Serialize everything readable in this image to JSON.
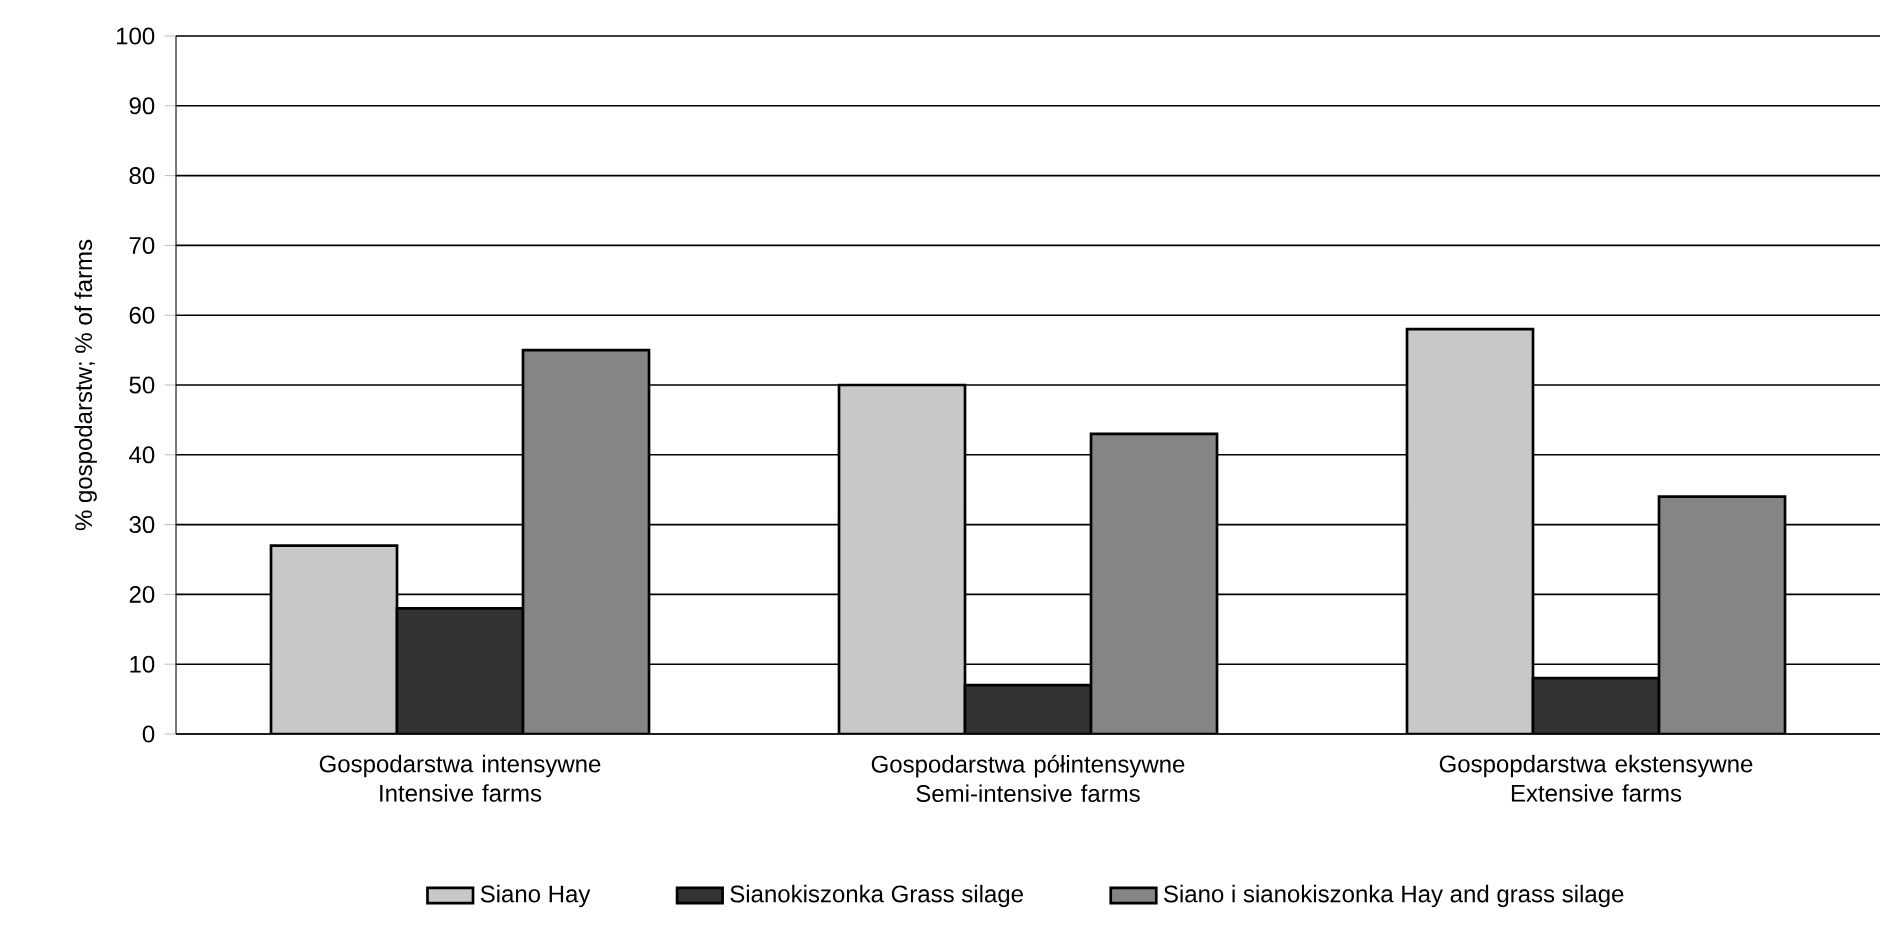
{
  "chart_data": {
    "type": "bar",
    "ylabel": "% gospodarstw; % of farms",
    "categories": [
      "Gospodarstwa intensywne Intensive farms",
      "Gospodarstwa półintensywne Semi-intensive farms",
      "Gospopdarstwa ekstensywne Extensive farms"
    ],
    "series": [
      {
        "name": "Siano   Hay",
        "color": "#c8c8c8",
        "values": [
          27,
          50,
          58
        ]
      },
      {
        "name": "Sianokiszonka   Grass silage",
        "color": "#333333",
        "values": [
          18,
          7,
          8
        ]
      },
      {
        "name": "Siano i sianokiszonka   Hay and grass silage",
        "color": "#858585",
        "values": [
          55,
          43,
          34
        ]
      }
    ],
    "ylim": [
      0,
      100
    ],
    "yticks": [
      0,
      10,
      20,
      30,
      40,
      50,
      60,
      70,
      80,
      90,
      100
    ],
    "grid": "y",
    "legend": "bottom"
  }
}
